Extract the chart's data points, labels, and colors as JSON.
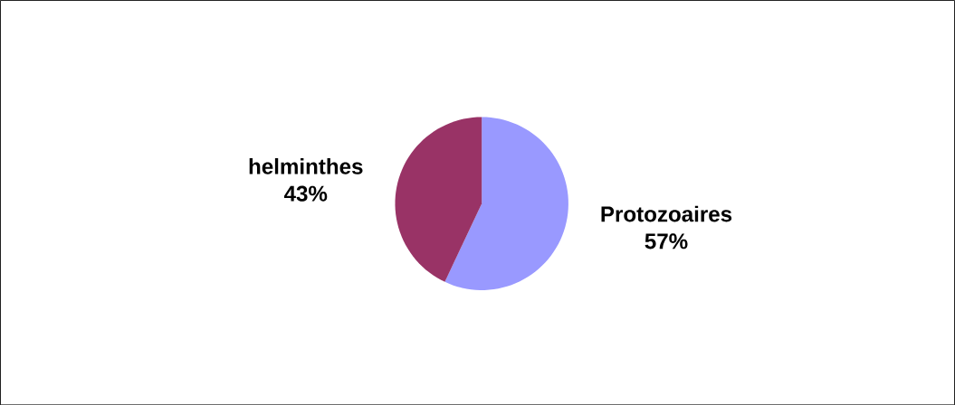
{
  "chart_data": {
    "type": "pie",
    "categories": [
      "helminthes",
      "Protozoaires"
    ],
    "values": [
      43,
      57
    ],
    "colors": [
      "#993366",
      "#9999ff"
    ],
    "data_labels": true,
    "value_labels": [
      "43%",
      "57%"
    ],
    "legend": false
  }
}
